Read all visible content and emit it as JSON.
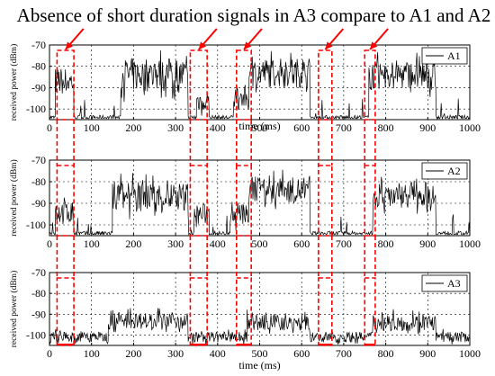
{
  "title": "Absence of short duration signals in A3 compare to A1 and A2",
  "chart_data": [
    {
      "type": "line",
      "series": [
        {
          "name": "A1"
        }
      ],
      "xlabel": "time (ms)",
      "ylabel": "received power (dBm)",
      "xlim": [
        0,
        1000
      ],
      "ylim": [
        -105,
        -70
      ],
      "xticks": [
        "0",
        "100",
        "200",
        "300",
        "400",
        "500",
        "600",
        "700",
        "800",
        "900",
        "1000"
      ],
      "yticks": [
        "-70",
        "-80",
        "-90",
        "-100"
      ],
      "grid": true,
      "legend": "top-right",
      "segments": [
        {
          "x": [
            0,
            14
          ],
          "level": -104
        },
        {
          "x": [
            14,
            58
          ],
          "level": -87,
          "spread": 13
        },
        {
          "x": [
            58,
            170
          ],
          "level": -104
        },
        {
          "x": [
            170,
            330
          ],
          "level": -84,
          "spread": 16
        },
        {
          "x": [
            330,
            350
          ],
          "level": -104
        },
        {
          "x": [
            350,
            380
          ],
          "level": -96,
          "spread": 10
        },
        {
          "x": [
            380,
            440
          ],
          "level": -104
        },
        {
          "x": [
            440,
            475
          ],
          "level": -95,
          "spread": 10
        },
        {
          "x": [
            475,
            620
          ],
          "level": -83,
          "spread": 14
        },
        {
          "x": [
            620,
            760
          ],
          "level": -104
        },
        {
          "x": [
            760,
            920
          ],
          "level": -84,
          "spread": 14
        },
        {
          "x": [
            920,
            1000
          ],
          "level": -104
        }
      ]
    },
    {
      "type": "line",
      "series": [
        {
          "name": "A2"
        }
      ],
      "xlabel": "",
      "ylabel": "received power (dBm)",
      "xlim": [
        0,
        1000
      ],
      "ylim": [
        -105,
        -70
      ],
      "xticks": [
        "0",
        "100",
        "200",
        "300",
        "400",
        "500",
        "600",
        "700",
        "800",
        "900",
        "1000"
      ],
      "yticks": [
        "-70",
        "-80",
        "-90",
        "-100"
      ],
      "grid": true,
      "legend": "top-right",
      "segments": [
        {
          "x": [
            0,
            14
          ],
          "level": -104
        },
        {
          "x": [
            14,
            58
          ],
          "level": -94,
          "spread": 11
        },
        {
          "x": [
            58,
            150
          ],
          "level": -104
        },
        {
          "x": [
            150,
            330
          ],
          "level": -87,
          "spread": 14
        },
        {
          "x": [
            330,
            345
          ],
          "level": -104
        },
        {
          "x": [
            345,
            380
          ],
          "level": -95,
          "spread": 10
        },
        {
          "x": [
            380,
            430
          ],
          "level": -104
        },
        {
          "x": [
            430,
            475
          ],
          "level": -95,
          "spread": 10
        },
        {
          "x": [
            475,
            620
          ],
          "level": -84,
          "spread": 12
        },
        {
          "x": [
            620,
            770
          ],
          "level": -104
        },
        {
          "x": [
            770,
            920
          ],
          "level": -86,
          "spread": 12
        },
        {
          "x": [
            920,
            1000
          ],
          "level": -104
        }
      ]
    },
    {
      "type": "line",
      "series": [
        {
          "name": "A3"
        }
      ],
      "xlabel": "time (ms)",
      "ylabel": "received power (dBm)",
      "xlim": [
        0,
        1000
      ],
      "ylim": [
        -105,
        -70
      ],
      "xticks": [
        "0",
        "100",
        "200",
        "300",
        "400",
        "500",
        "600",
        "700",
        "800",
        "900",
        "1000"
      ],
      "yticks": [
        "-70",
        "-80",
        "-90",
        "-100"
      ],
      "grid": true,
      "legend": "top-right",
      "segments": [
        {
          "x": [
            0,
            140
          ],
          "level": -101,
          "spread": 5
        },
        {
          "x": [
            140,
            330
          ],
          "level": -93,
          "spread": 8
        },
        {
          "x": [
            330,
            470
          ],
          "level": -101,
          "spread": 5
        },
        {
          "x": [
            470,
            620
          ],
          "level": -94,
          "spread": 8
        },
        {
          "x": [
            620,
            770
          ],
          "level": -101,
          "spread": 5
        },
        {
          "x": [
            770,
            920
          ],
          "level": -94,
          "spread": 8
        },
        {
          "x": [
            920,
            1000
          ],
          "level": -101,
          "spread": 5
        }
      ]
    }
  ],
  "highlight_ranges": [
    [
      18,
      58
    ],
    [
      335,
      375
    ],
    [
      445,
      480
    ],
    [
      640,
      672
    ],
    [
      750,
      775
    ]
  ],
  "colors": {
    "highlight": "#ff0000",
    "line": "#000000",
    "grid": "#000000"
  }
}
